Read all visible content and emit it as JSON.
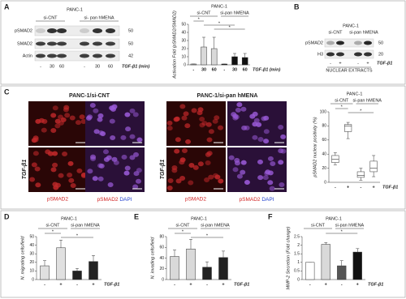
{
  "panel_labels": [
    "A",
    "B",
    "C",
    "D",
    "E",
    "F"
  ],
  "blot_a": {
    "cell_line": "PANC-1",
    "groups": [
      "si-CNT",
      "si- pan hMENA"
    ],
    "rows": [
      "pSMAD2",
      "SMAD2",
      "Actin"
    ],
    "markers": [
      "50",
      "50",
      "42"
    ],
    "lanes": [
      "-",
      "30",
      "60",
      "-",
      "30",
      "60"
    ],
    "treatment": "TGF-β1 (min)"
  },
  "blot_b": {
    "cell_line": "PANC-1",
    "groups": [
      "si-CNT",
      "si-pan hMENA"
    ],
    "rows": [
      "pSMAD2",
      "H3"
    ],
    "markers": [
      "50",
      "20"
    ],
    "lanes": [
      "-",
      "+",
      "-",
      "+"
    ],
    "treatment": "TGF-β1",
    "footer": "NUCLEAR EXTRACTS"
  },
  "images_c": {
    "titles": [
      "PANC-1/si-CNT",
      "PANC-1/si-pan hMENA"
    ],
    "row_label": "TGF-β1",
    "caption_red": "pSMAD2",
    "caption_blue": "DAPI"
  },
  "chart_data": [
    {
      "type": "bar",
      "cell_line": "PANC-1",
      "groups": [
        "si-CNT",
        "si-pan hMENA"
      ],
      "ylabel": "Activation Fold (pSMAD2/SMAD2)",
      "xlabel": "TGF-β1 (min)",
      "categories": [
        "-",
        "30",
        "60",
        "-",
        "30",
        "60"
      ],
      "values": [
        1,
        22,
        20,
        1,
        10,
        9
      ],
      "errors": [
        0,
        12,
        14,
        0,
        4,
        5
      ],
      "colors": [
        "#d9d9d9",
        "#d9d9d9",
        "#d9d9d9",
        "#111111",
        "#111111",
        "#111111"
      ],
      "ylim": [
        0,
        50
      ],
      "yticks": [
        0,
        10,
        20,
        30,
        40,
        50
      ],
      "annotations": [
        "*",
        "*",
        "*"
      ]
    },
    {
      "type": "box",
      "cell_line": "PANC-1",
      "groups": [
        "si-CNT",
        "si-pan hMENA"
      ],
      "ylabel": "pSMAD2 nuclear positivity (%)",
      "xlabel": "TGF-β1",
      "categories": [
        "-",
        "+",
        "-",
        "+"
      ],
      "min": [
        25,
        62,
        3,
        8
      ],
      "q1": [
        28,
        72,
        7,
        15
      ],
      "median": [
        33,
        80,
        10,
        20
      ],
      "q3": [
        38,
        82,
        15,
        30
      ],
      "max": [
        42,
        85,
        20,
        38
      ],
      "ylim": [
        0,
        100
      ],
      "yticks": [
        0,
        20,
        40,
        60,
        80,
        100
      ],
      "annotations": [
        "*",
        "*"
      ]
    },
    {
      "type": "bar",
      "cell_line": "PANC-1",
      "groups": [
        "si-CNT",
        "si-pan hMENA"
      ],
      "ylabel": "N. migrating cells/field",
      "xlabel": "TGF-β1",
      "categories": [
        "-",
        "+",
        "-",
        "+"
      ],
      "values": [
        16,
        37,
        10,
        21
      ],
      "errors": [
        6,
        9,
        3,
        7
      ],
      "colors": [
        "#e0e0e0",
        "#e0e0e0",
        "#222222",
        "#222222"
      ],
      "ylim": [
        0,
        50
      ],
      "yticks": [
        0,
        10,
        20,
        30,
        40,
        50
      ],
      "annotations": [
        "*",
        "*"
      ]
    },
    {
      "type": "bar",
      "cell_line": "PANC-1",
      "groups": [
        "si-CNT",
        "si-pan hMENA"
      ],
      "ylabel": "N. invading cells/field",
      "xlabel": "TGF-β1",
      "categories": [
        "-",
        "+",
        "-",
        "+"
      ],
      "values": [
        43,
        57,
        23,
        41
      ],
      "errors": [
        12,
        18,
        10,
        12
      ],
      "colors": [
        "#d9d9d9",
        "#d9d9d9",
        "#222222",
        "#222222"
      ],
      "ylim": [
        0,
        80
      ],
      "yticks": [
        0,
        20,
        40,
        60,
        80
      ],
      "annotations": [
        "*",
        "*"
      ]
    },
    {
      "type": "bar",
      "cell_line": "PANC-1",
      "groups": [
        "si-CNT",
        "si-pan hMENA"
      ],
      "ylabel": "MMP-2 Secretion (Fold change)",
      "xlabel": "TGF-β1",
      "categories": [
        "-",
        "+",
        "-",
        "+"
      ],
      "values": [
        1,
        2.05,
        0.8,
        1.6
      ],
      "errors": [
        0,
        0.1,
        0.3,
        0.2
      ],
      "colors": [
        "#ffffff",
        "#d9d9d9",
        "#555555",
        "#111111"
      ],
      "ylim": [
        0,
        2.5
      ],
      "yticks": [
        0,
        0.5,
        1,
        1.5,
        2,
        2.5
      ],
      "annotations": [
        "*"
      ]
    }
  ]
}
